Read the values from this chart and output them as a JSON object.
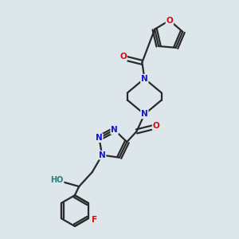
{
  "bg_color": "#dde6ea",
  "bond_color": "#2a2a2a",
  "bond_width": 1.6,
  "atom_colors": {
    "N": "#1515cc",
    "O": "#cc1111",
    "F": "#cc1111",
    "H": "#2a7a7a"
  },
  "xlim": [
    0,
    10
  ],
  "ylim": [
    0,
    10
  ],
  "figsize": [
    3.0,
    3.0
  ],
  "dpi": 100
}
